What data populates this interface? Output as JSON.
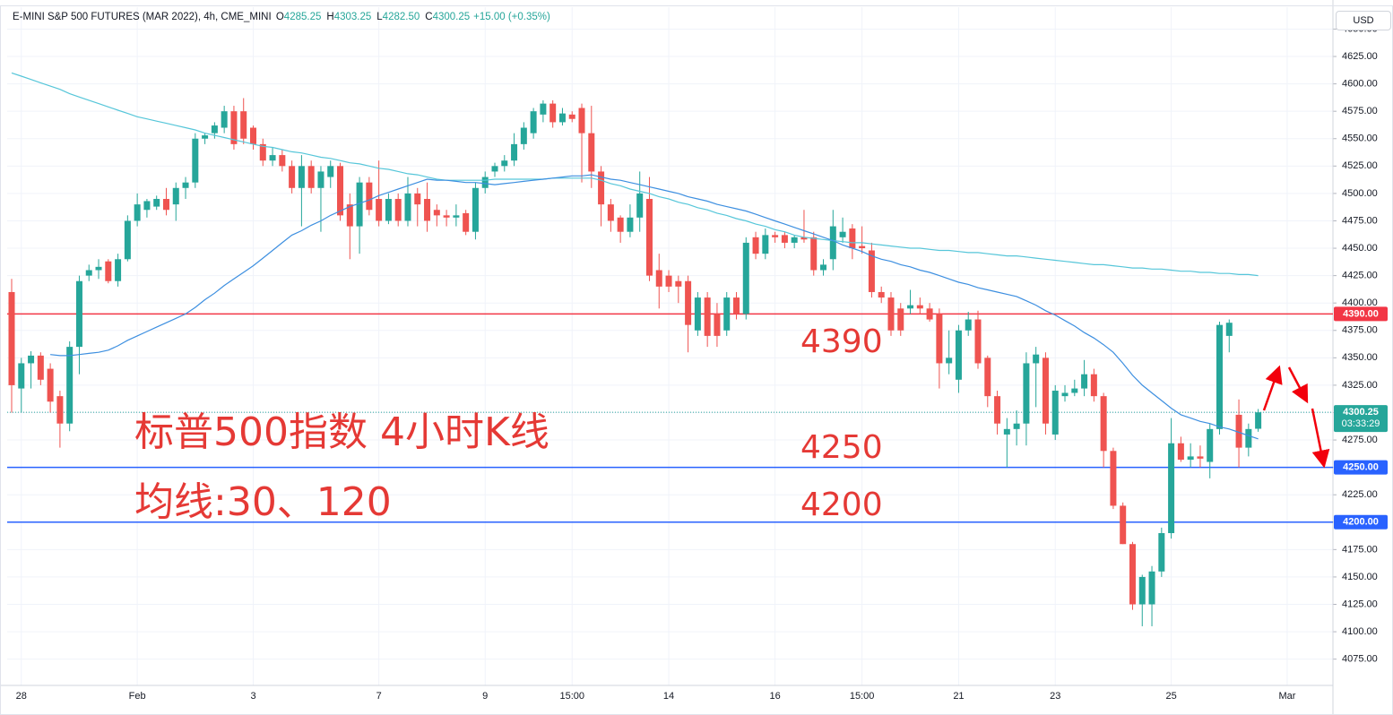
{
  "chart_data": {
    "type": "candlestick",
    "header": {
      "symbol": "E-MINI S&P 500 FUTURES (MAR 2022), 4h, CME_MINI",
      "ohlc": [
        {
          "key": "O",
          "value": "4285.25"
        },
        {
          "key": "H",
          "value": "4303.25"
        },
        {
          "key": "L",
          "value": "4282.50"
        },
        {
          "key": "C",
          "value": "4300.25"
        }
      ],
      "change": "+15.00 (+0.35%)"
    },
    "currency": "USD",
    "annotations": [
      "标普500指数 4小时K线",
      "均线:30、120",
      "4390",
      "4250",
      "4200"
    ],
    "up_color": "#26a69a",
    "down_color": "#ef5350",
    "grid": true,
    "ylim": [
      4051,
      4670
    ],
    "yticks": [
      {
        "value": 4075,
        "label": "4075.00"
      },
      {
        "value": 4100,
        "label": "4100.00"
      },
      {
        "value": 4125,
        "label": "4125.00"
      },
      {
        "value": 4150,
        "label": "4150.00"
      },
      {
        "value": 4175,
        "label": "4175.00"
      },
      {
        "value": 4200,
        "label": "4200.00"
      },
      {
        "value": 4225,
        "label": "4225.00"
      },
      {
        "value": 4250,
        "label": "4250.00"
      },
      {
        "value": 4275,
        "label": "4275.00"
      },
      {
        "value": 4300,
        "label": "4300.00"
      },
      {
        "value": 4325,
        "label": "4325.00"
      },
      {
        "value": 4350,
        "label": "4350.00"
      },
      {
        "value": 4375,
        "label": "4375.00"
      },
      {
        "value": 4400,
        "label": "4400.00"
      },
      {
        "value": 4425,
        "label": "4425.00"
      },
      {
        "value": 4450,
        "label": "4450.00"
      },
      {
        "value": 4475,
        "label": "4475.00"
      },
      {
        "value": 4500,
        "label": "4500.00"
      },
      {
        "value": 4525,
        "label": "4525.00"
      },
      {
        "value": 4550,
        "label": "4550.00"
      },
      {
        "value": 4575,
        "label": "4575.00"
      },
      {
        "value": 4600,
        "label": "4600.00"
      },
      {
        "value": 4625,
        "label": "4625.00"
      },
      {
        "value": 4650,
        "label": "4650.00"
      }
    ],
    "categories": [
      null,
      "28",
      null,
      null,
      null,
      null,
      null,
      null,
      null,
      null,
      null,
      null,
      null,
      "Feb",
      null,
      null,
      null,
      null,
      null,
      null,
      null,
      null,
      null,
      null,
      null,
      "3",
      null,
      null,
      null,
      null,
      null,
      null,
      null,
      null,
      null,
      null,
      null,
      null,
      "7",
      null,
      null,
      null,
      null,
      null,
      null,
      null,
      null,
      null,
      null,
      "9",
      null,
      null,
      null,
      null,
      null,
      null,
      null,
      null,
      "15:00",
      null,
      null,
      null,
      null,
      null,
      null,
      null,
      null,
      null,
      "14",
      null,
      null,
      null,
      null,
      null,
      null,
      null,
      null,
      null,
      null,
      "16",
      null,
      null,
      null,
      null,
      null,
      null,
      null,
      null,
      "15:00",
      null,
      null,
      null,
      null,
      null,
      null,
      null,
      null,
      null,
      "21",
      null,
      null,
      null,
      null,
      null,
      null,
      null,
      null,
      null,
      "23",
      null,
      null,
      null,
      null,
      null,
      null,
      null,
      null,
      null,
      null,
      null,
      "25",
      null,
      null,
      null,
      null,
      null,
      null,
      null,
      null,
      null,
      null,
      null,
      "Mar"
    ],
    "candles": [
      [
        4410,
        4422,
        4300,
        4325
      ],
      [
        4322,
        4350,
        4300,
        4345
      ],
      [
        4345,
        4356,
        4322,
        4352
      ],
      [
        4352,
        4355,
        4325,
        4330
      ],
      [
        4340,
        4345,
        4300,
        4310
      ],
      [
        4315,
        4320,
        4268,
        4290
      ],
      [
        4290,
        4365,
        4283,
        4360
      ],
      [
        4360,
        4425,
        4335,
        4420
      ],
      [
        4425,
        4435,
        4420,
        4430
      ],
      [
        4430,
        4440,
        4422,
        4433
      ],
      [
        4438,
        4440,
        4418,
        4420
      ],
      [
        4420,
        4445,
        4415,
        4440
      ],
      [
        4440,
        4480,
        4438,
        4475
      ],
      [
        4475,
        4500,
        4470,
        4490
      ],
      [
        4485,
        4495,
        4478,
        4493
      ],
      [
        4488,
        4498,
        4485,
        4495
      ],
      [
        4495,
        4505,
        4480,
        4485
      ],
      [
        4490,
        4510,
        4475,
        4505
      ],
      [
        4505,
        4515,
        4495,
        4510
      ],
      [
        4510,
        4555,
        4505,
        4550
      ],
      [
        4550,
        4555,
        4545,
        4553
      ],
      [
        4555,
        4565,
        4550,
        4562
      ],
      [
        4560,
        4580,
        4555,
        4575
      ],
      [
        4575,
        4580,
        4540,
        4545
      ],
      [
        4575,
        4587,
        4545,
        4550
      ],
      [
        4560,
        4562,
        4540,
        4545
      ],
      [
        4545,
        4550,
        4525,
        4530
      ],
      [
        4530,
        4542,
        4525,
        4535
      ],
      [
        4535,
        4540,
        4520,
        4525
      ],
      [
        4525,
        4530,
        4500,
        4505
      ],
      [
        4505,
        4535,
        4470,
        4525
      ],
      [
        4525,
        4530,
        4500,
        4505
      ],
      [
        4505,
        4525,
        4465,
        4520
      ],
      [
        4515,
        4530,
        4505,
        4525
      ],
      [
        4525,
        4528,
        4475,
        4480
      ],
      [
        4490,
        4500,
        4440,
        4470
      ],
      [
        4470,
        4515,
        4445,
        4510
      ],
      [
        4510,
        4515,
        4480,
        4485
      ],
      [
        4495,
        4530,
        4470,
        4475
      ],
      [
        4475,
        4500,
        4472,
        4495
      ],
      [
        4495,
        4500,
        4470,
        4475
      ],
      [
        4475,
        4515,
        4470,
        4500
      ],
      [
        4500,
        4505,
        4470,
        4490
      ],
      [
        4495,
        4510,
        4465,
        4475
      ],
      [
        4485,
        4490,
        4470,
        4480
      ],
      [
        4480,
        4485,
        4470,
        4478
      ],
      [
        4478,
        4490,
        4470,
        4480
      ],
      [
        4482,
        4485,
        4462,
        4465
      ],
      [
        4465,
        4510,
        4458,
        4505
      ],
      [
        4505,
        4520,
        4500,
        4515
      ],
      [
        4520,
        4528,
        4515,
        4525
      ],
      [
        4525,
        4535,
        4520,
        4530
      ],
      [
        4530,
        4555,
        4525,
        4545
      ],
      [
        4545,
        4565,
        4540,
        4560
      ],
      [
        4555,
        4578,
        4550,
        4575
      ],
      [
        4572,
        4585,
        4565,
        4582
      ],
      [
        4582,
        4585,
        4560,
        4565
      ],
      [
        4565,
        4578,
        4562,
        4573
      ],
      [
        4572,
        4575,
        4565,
        4568
      ],
      [
        4578,
        4582,
        4510,
        4555
      ],
      [
        4555,
        4580,
        4505,
        4520
      ],
      [
        4520,
        4525,
        4470,
        4490
      ],
      [
        4490,
        4495,
        4465,
        4475
      ],
      [
        4478,
        4480,
        4455,
        4465
      ],
      [
        4465,
        4490,
        4460,
        4478
      ],
      [
        4478,
        4520,
        4465,
        4500
      ],
      [
        4495,
        4515,
        4420,
        4425
      ],
      [
        4430,
        4445,
        4395,
        4415
      ],
      [
        4425,
        4430,
        4410,
        4415
      ],
      [
        4420,
        4425,
        4400,
        4415
      ],
      [
        4420,
        4425,
        4355,
        4380
      ],
      [
        4375,
        4410,
        4370,
        4405
      ],
      [
        4405,
        4410,
        4360,
        4370
      ],
      [
        4390,
        4400,
        4360,
        4370
      ],
      [
        4375,
        4410,
        4370,
        4405
      ],
      [
        4405,
        4410,
        4385,
        4390
      ],
      [
        4390,
        4460,
        4385,
        4455
      ],
      [
        4460,
        4465,
        4440,
        4445
      ],
      [
        4445,
        4468,
        4440,
        4462
      ],
      [
        4462,
        4465,
        4455,
        4460
      ],
      [
        4462,
        4465,
        4450,
        4455
      ],
      [
        4455,
        4462,
        4450,
        4460
      ],
      [
        4460,
        4485,
        4455,
        4458
      ],
      [
        4460,
        4465,
        4425,
        4430
      ],
      [
        4430,
        4440,
        4425,
        4435
      ],
      [
        4440,
        4485,
        4430,
        4470
      ],
      [
        4460,
        4478,
        4455,
        4465
      ],
      [
        4468,
        4472,
        4440,
        4450
      ],
      [
        4452,
        4470,
        4445,
        4450
      ],
      [
        4448,
        4455,
        4405,
        4410
      ],
      [
        4410,
        4415,
        4400,
        4405
      ],
      [
        4405,
        4410,
        4370,
        4375
      ],
      [
        4395,
        4400,
        4370,
        4375
      ],
      [
        4395,
        4412,
        4390,
        4398
      ],
      [
        4398,
        4405,
        4390,
        4395
      ],
      [
        4395,
        4400,
        4383,
        4385
      ],
      [
        4390,
        4395,
        4322,
        4345
      ],
      [
        4345,
        4375,
        4335,
        4350
      ],
      [
        4330,
        4380,
        4318,
        4375
      ],
      [
        4375,
        4392,
        4370,
        4385
      ],
      [
        4385,
        4393,
        4340,
        4345
      ],
      [
        4350,
        4352,
        4305,
        4315
      ],
      [
        4315,
        4320,
        4280,
        4290
      ],
      [
        4280,
        4295,
        4250,
        4285
      ],
      [
        4285,
        4302,
        4270,
        4290
      ],
      [
        4290,
        4355,
        4270,
        4345
      ],
      [
        4345,
        4360,
        4305,
        4353
      ],
      [
        4350,
        4355,
        4280,
        4290
      ],
      [
        4280,
        4325,
        4275,
        4320
      ],
      [
        4315,
        4325,
        4310,
        4318
      ],
      [
        4318,
        4330,
        4315,
        4322
      ],
      [
        4322,
        4348,
        4315,
        4335
      ],
      [
        4335,
        4340,
        4310,
        4315
      ],
      [
        4315,
        4318,
        4250,
        4265
      ],
      [
        4265,
        4268,
        4212,
        4215
      ],
      [
        4215,
        4218,
        4180,
        4180
      ],
      [
        4180,
        4182,
        4120,
        4125
      ],
      [
        4125,
        4152,
        4105,
        4150
      ],
      [
        4125,
        4160,
        4105,
        4155
      ],
      [
        4155,
        4195,
        4150,
        4190
      ],
      [
        4190,
        4295,
        4185,
        4272
      ],
      [
        4272,
        4278,
        4255,
        4257
      ],
      [
        4257,
        4272,
        4250,
        4260
      ],
      [
        4260,
        4270,
        4250,
        4258
      ],
      [
        4255,
        4290,
        4240,
        4285
      ],
      [
        4285,
        4383,
        4280,
        4380
      ],
      [
        4370,
        4385,
        4355,
        4382
      ],
      [
        4298,
        4312,
        4250,
        4268
      ],
      [
        4268,
        4290,
        4260,
        4285
      ],
      [
        4285.25,
        4303.25,
        4282.5,
        4300.25
      ],
      null,
      null,
      null
    ],
    "series": [
      {
        "name": "MA120",
        "color": "#56c6d9",
        "values": [
          4610,
          4607,
          4604,
          4601,
          4598,
          4595,
          4591,
          4588,
          4585,
          4582,
          4579,
          4576,
          4573,
          4570,
          4568,
          4566,
          4564,
          4562,
          4560,
          4558,
          4555,
          4553,
          4551,
          4549,
          4547,
          4545,
          4543,
          4542,
          4540,
          4538,
          4537,
          4535,
          4533,
          4532,
          4530,
          4528,
          4527,
          4525,
          4523,
          4522,
          4520,
          4518,
          4517,
          4515,
          4513,
          4512,
          4512,
          4512,
          4512,
          4512,
          4513,
          4513,
          4513,
          4513,
          4513,
          4513,
          4514,
          4514,
          4514,
          4514,
          4514,
          4512,
          4509,
          4507,
          4504,
          4502,
          4500,
          4497,
          4495,
          4492,
          4490,
          4487,
          4485,
          4482,
          4480,
          4477,
          4475,
          4472,
          4470,
          4467,
          4465,
          4462,
          4460,
          4459,
          4458,
          4457,
          4456,
          4455,
          4455,
          4454,
          4453,
          4452,
          4451,
          4450,
          4450,
          4449,
          4448,
          4448,
          4447,
          4446,
          4446,
          4445,
          4444,
          4443,
          4443,
          4442,
          4441,
          4440,
          4439,
          4438,
          4437,
          4436,
          4435,
          4435,
          4434,
          4433,
          4432,
          4432,
          4431,
          4431,
          4430,
          4429,
          4429,
          4428,
          4428,
          4427,
          4427,
          4426,
          4426,
          4425,
          null,
          null,
          null
        ]
      },
      {
        "name": "MA30",
        "color": "#3d8fe0",
        "values": [
          null,
          null,
          null,
          null,
          4353,
          4352,
          4352,
          4353,
          4354,
          4355,
          4357,
          4361,
          4366,
          4370,
          4374,
          4378,
          4382,
          4386,
          4390,
          4396,
          4403,
          4409,
          4416,
          4422,
          4428,
          4434,
          4441,
          4448,
          4455,
          4462,
          4466,
          4471,
          4475,
          4480,
          4484,
          4488,
          4491,
          4494,
          4498,
          4501,
          4504,
          4507,
          4510,
          4513,
          4512,
          4512,
          4511,
          4510,
          4510,
          4509,
          4508,
          4509,
          4510,
          4511,
          4512,
          4513,
          4514,
          4515,
          4516,
          4516,
          4517,
          4515,
          4513,
          4512,
          4510,
          4508,
          4506,
          4504,
          4502,
          4500,
          4497,
          4495,
          4493,
          4490,
          4488,
          4486,
          4484,
          4481,
          4478,
          4475,
          4472,
          4469,
          4466,
          4463,
          4460,
          4457,
          4453,
          4450,
          4447,
          4443,
          4440,
          4438,
          4435,
          4433,
          4430,
          4428,
          4425,
          4422,
          4419,
          4417,
          4414,
          4412,
          4410,
          4408,
          4406,
          4402,
          4398,
          4393,
          4389,
          4384,
          4379,
          4373,
          4368,
          4362,
          4355,
          4345,
          4334,
          4325,
          4318,
          4311,
          4304,
          4298,
          4295,
          4292,
          4290,
          4287,
          4285,
          4282,
          4279,
          4276,
          null,
          null,
          null
        ]
      }
    ],
    "levels": [
      {
        "value": 4390,
        "label": "4390.00",
        "color": "#f23645"
      },
      {
        "value": 4250,
        "label": "4250.00",
        "color": "#2962ff"
      },
      {
        "value": 4200,
        "label": "4200.00",
        "color": "#2962ff"
      }
    ],
    "last_price": {
      "value": 4300.25,
      "label": "4300.25",
      "countdown": "03:33:29"
    }
  }
}
